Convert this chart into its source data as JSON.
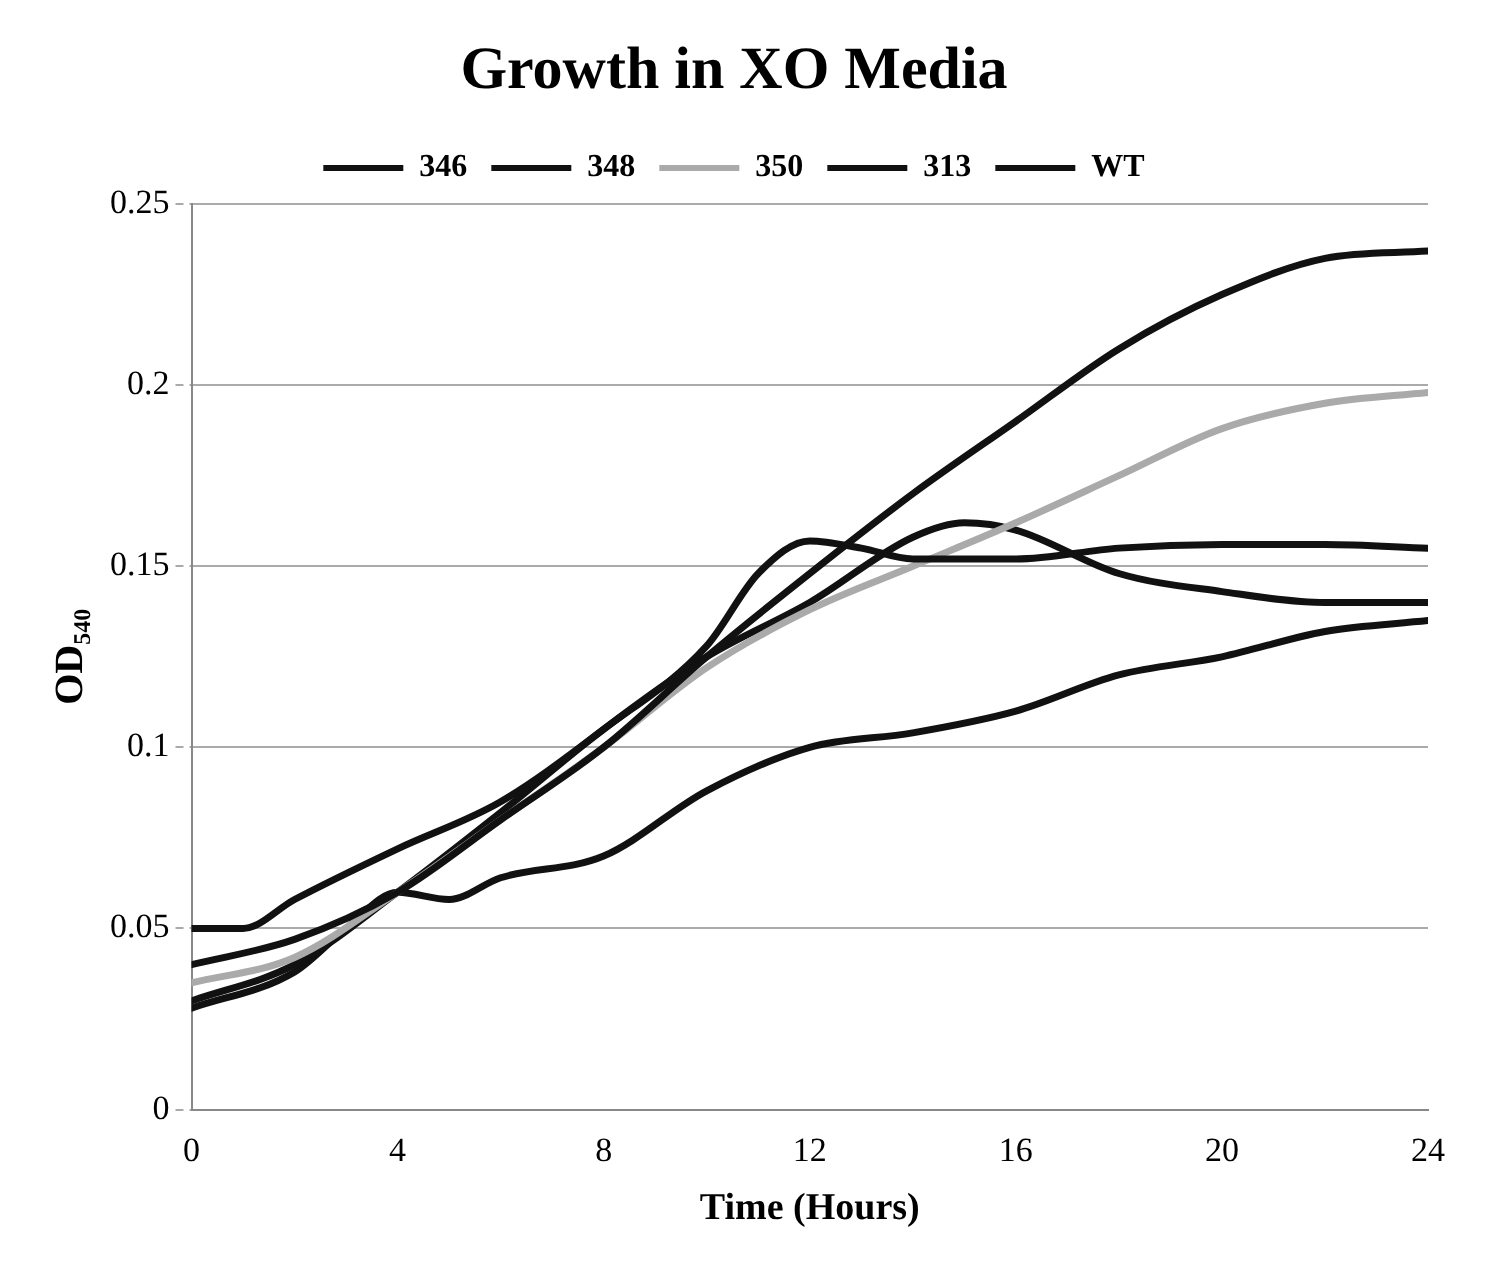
{
  "chart_data": {
    "type": "line",
    "title": "Growth in XO Media",
    "xlabel": "Time (Hours)",
    "ylabel": "OD₅₄₀",
    "xlim": [
      0,
      24
    ],
    "xticks": [
      0,
      4,
      8,
      12,
      16,
      20,
      24
    ],
    "ylim": [
      0,
      0.25
    ],
    "yticks": [
      0,
      0.05,
      0.1,
      0.15,
      0.2,
      0.25
    ],
    "grid": "y",
    "legend": "top",
    "marker": "none",
    "line_style": "solid",
    "series": [
      {
        "name": "346",
        "color": "#111111",
        "x": [
          0,
          2,
          4,
          6,
          8,
          10,
          12,
          14,
          16,
          18,
          20,
          22,
          24
        ],
        "values": [
          0.04,
          0.047,
          0.06,
          0.08,
          0.1,
          0.125,
          0.148,
          0.17,
          0.19,
          0.21,
          0.225,
          0.235,
          0.237
        ]
      },
      {
        "name": "348",
        "color": "#111111",
        "x": [
          0,
          1,
          2,
          4,
          6,
          8,
          10,
          11,
          12,
          13,
          14,
          16,
          18,
          20,
          22,
          24
        ],
        "values": [
          0.05,
          0.05,
          0.058,
          0.072,
          0.085,
          0.105,
          0.128,
          0.148,
          0.157,
          0.155,
          0.152,
          0.152,
          0.155,
          0.156,
          0.156,
          0.155
        ]
      },
      {
        "name": "350",
        "color": "#aaaaaa",
        "x": [
          0,
          2,
          4,
          6,
          8,
          10,
          12,
          14,
          16,
          18,
          20,
          22,
          24
        ],
        "values": [
          0.035,
          0.042,
          0.06,
          0.08,
          0.1,
          0.122,
          0.138,
          0.15,
          0.162,
          0.175,
          0.188,
          0.195,
          0.198
        ]
      },
      {
        "name": "313",
        "color": "#111111",
        "x": [
          0,
          2,
          4,
          6,
          8,
          10,
          12,
          14,
          15,
          16,
          18,
          20,
          22,
          24
        ],
        "values": [
          0.03,
          0.04,
          0.06,
          0.082,
          0.105,
          0.125,
          0.14,
          0.158,
          0.162,
          0.16,
          0.148,
          0.143,
          0.14,
          0.14
        ]
      },
      {
        "name": "WT",
        "color": "#111111",
        "x": [
          0,
          2,
          3,
          4,
          5,
          6,
          8,
          10,
          12,
          14,
          16,
          18,
          20,
          22,
          24
        ],
        "values": [
          0.028,
          0.038,
          0.05,
          0.06,
          0.058,
          0.064,
          0.07,
          0.088,
          0.1,
          0.104,
          0.11,
          0.12,
          0.125,
          0.132,
          0.135
        ]
      }
    ]
  }
}
